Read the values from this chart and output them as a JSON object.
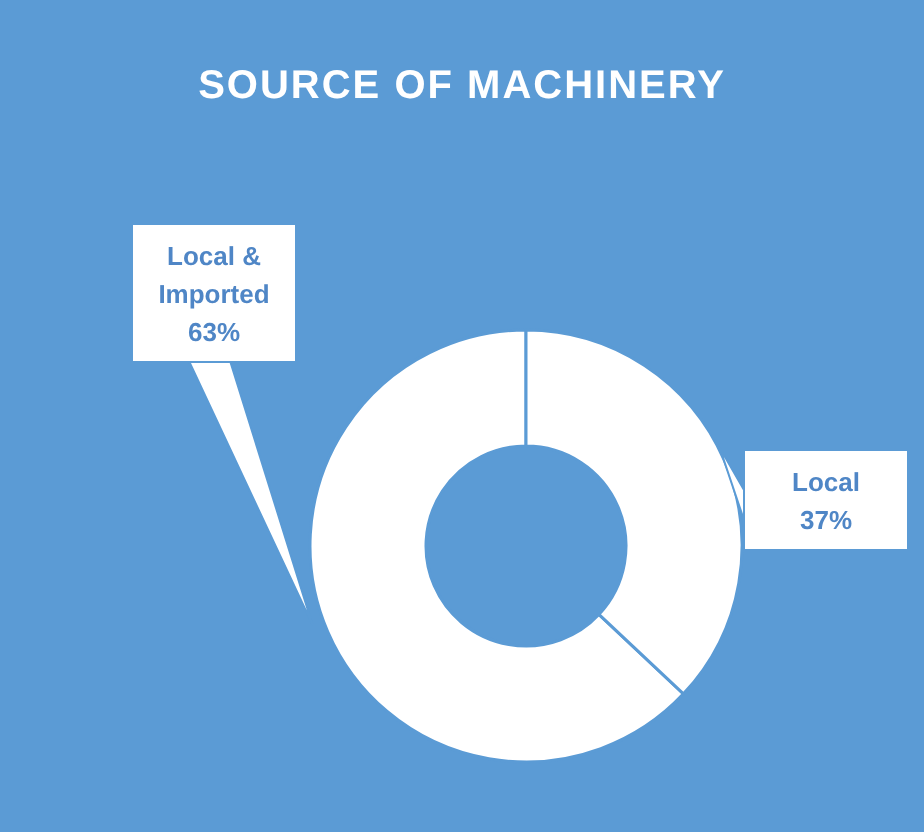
{
  "chart_data": {
    "type": "donut",
    "title": "SOURCE OF MACHINERY",
    "categories": [
      "Local & Imported",
      "Local"
    ],
    "values": [
      63,
      37
    ],
    "colors": [
      "#ffffff",
      "#ffffff"
    ],
    "value_labels": [
      "63%",
      "37%"
    ]
  }
}
